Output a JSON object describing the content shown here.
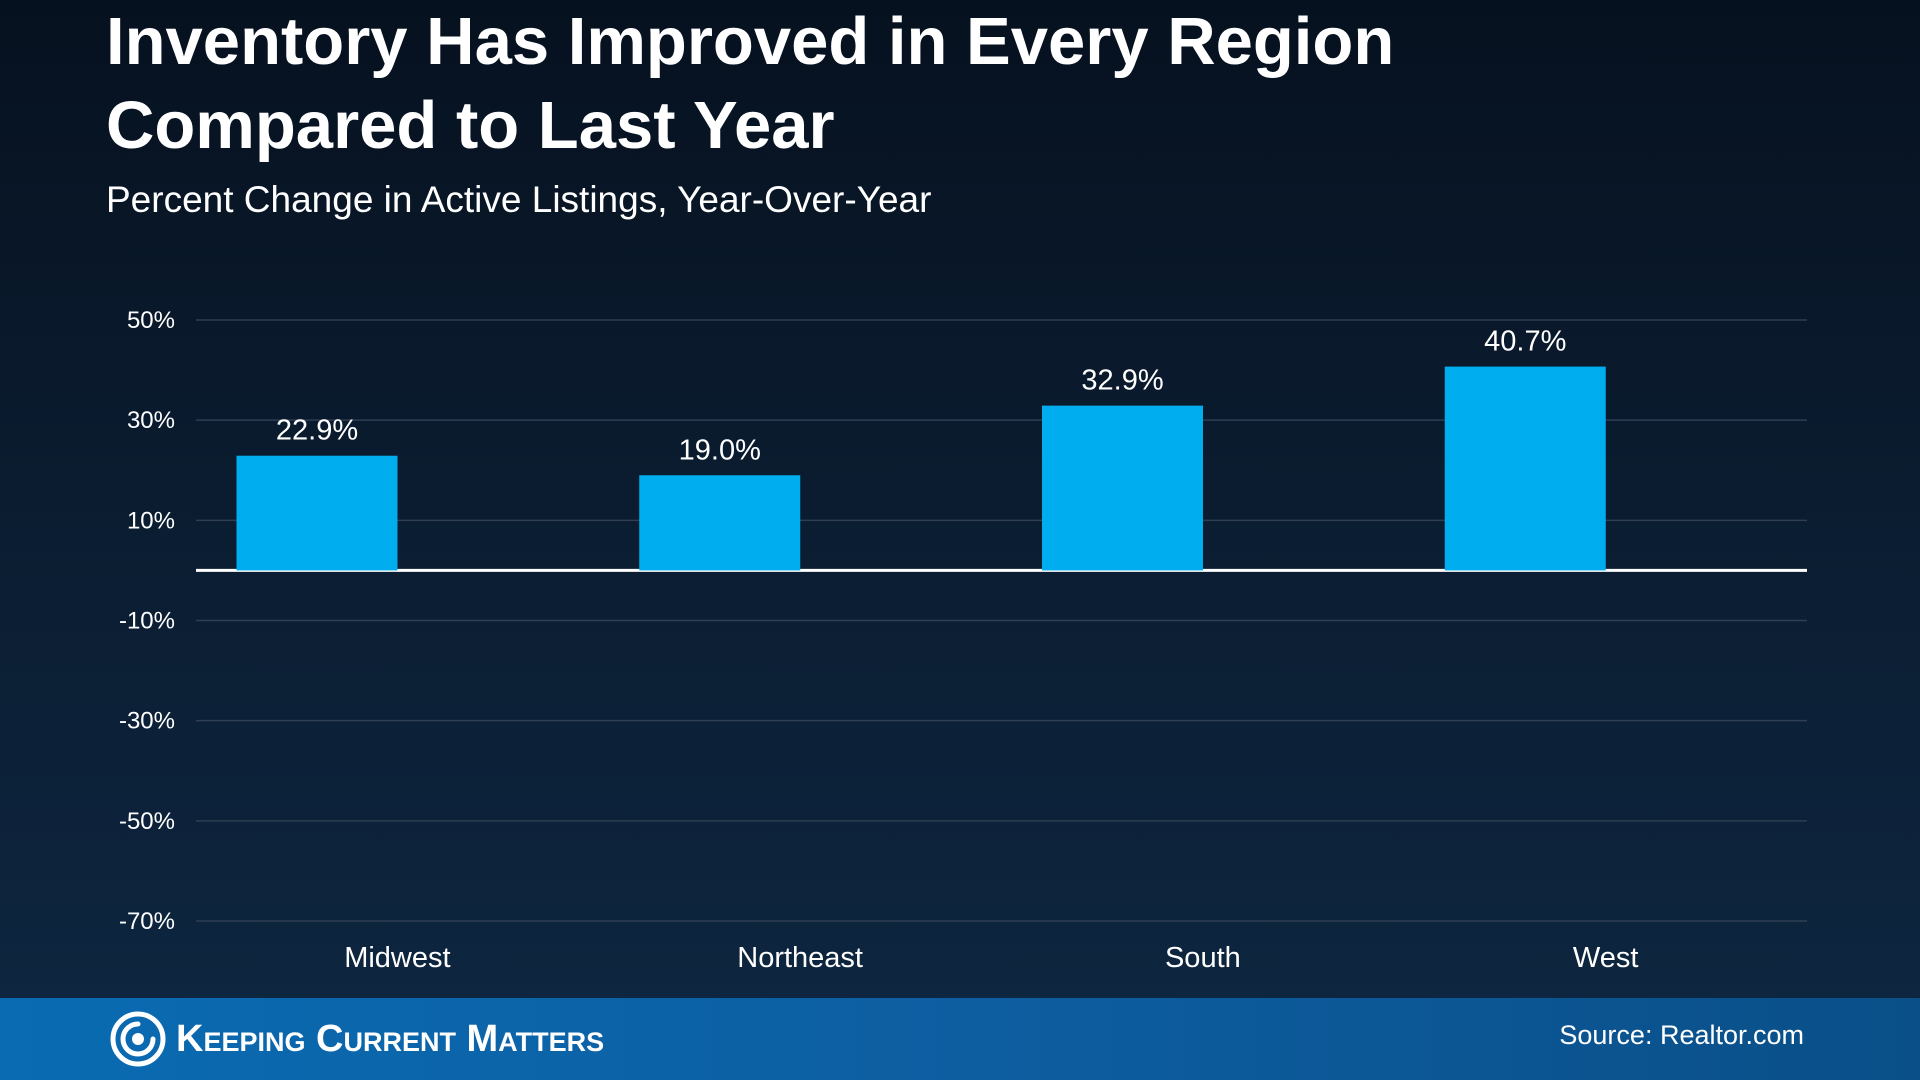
{
  "title_line1": "Inventory Has Improved in Every Region",
  "title_line2": "Compared to Last Year",
  "subtitle": "Percent Change in Active Listings, Year-Over-Year",
  "chart_data": {
    "type": "bar",
    "title": "Inventory Has Improved in Every Region Compared to Last Year",
    "subtitle": "Percent Change in Active Listings, Year-Over-Year",
    "categories": [
      "Midwest",
      "Northeast",
      "South",
      "West"
    ],
    "values": [
      22.9,
      19.0,
      32.9,
      40.7
    ],
    "value_labels": [
      "22.9%",
      "19.0%",
      "32.9%",
      "40.7%"
    ],
    "ylim": [
      -70,
      50
    ],
    "yticks": [
      50,
      30,
      10,
      -10,
      -30,
      -50,
      -70
    ],
    "ytick_labels": [
      "50%",
      "30%",
      "10%",
      "-10%",
      "-30%",
      "-50%",
      "-70%"
    ],
    "grid": true,
    "bar_color": "#00adef"
  },
  "footer": {
    "brand": "Keeping Current Matters",
    "source": "Source: Realtor.com"
  },
  "colors": {
    "bar": "#00adef",
    "grid": "#2f3e52",
    "zero_line": "#ffffff",
    "footer": "#0b5ea2"
  }
}
